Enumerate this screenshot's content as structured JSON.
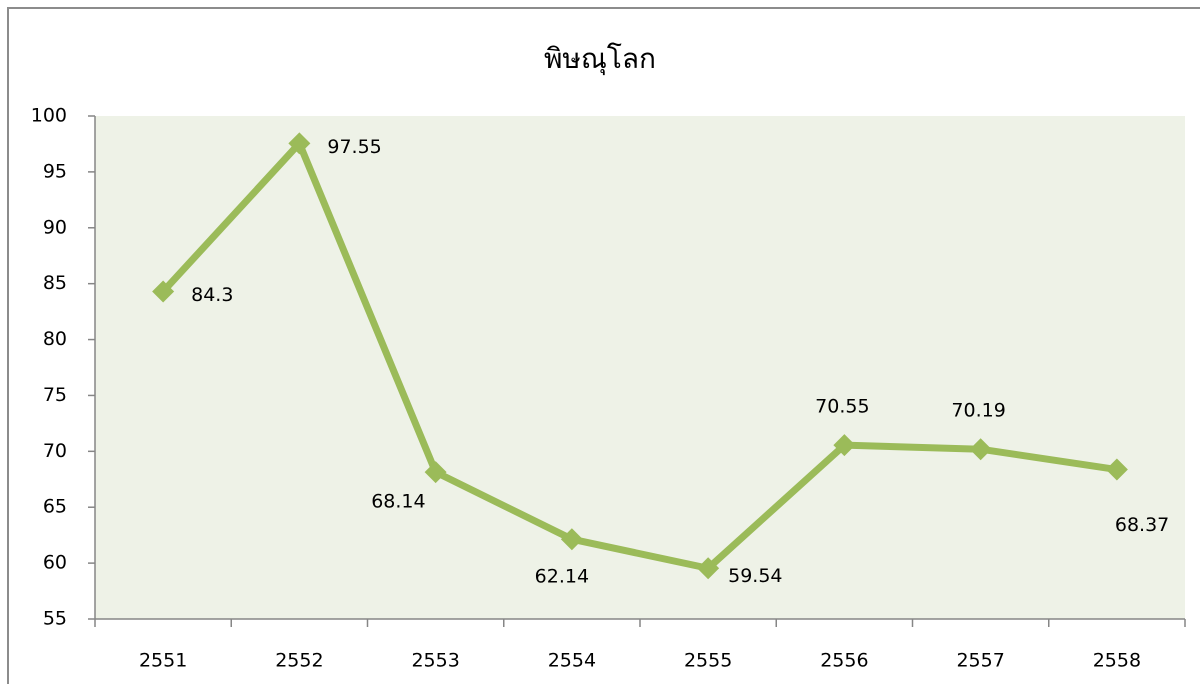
{
  "chart_data": {
    "type": "line",
    "title": "พิษณุโลก",
    "categories": [
      "2551",
      "2552",
      "2553",
      "2554",
      "2555",
      "2556",
      "2557",
      "2558"
    ],
    "values": [
      84.3,
      97.55,
      68.14,
      62.14,
      59.54,
      70.55,
      70.19,
      68.37
    ],
    "color": "#9bbb59",
    "ylim": [
      55,
      100
    ],
    "yticks": [
      55,
      60,
      65,
      70,
      75,
      80,
      85,
      90,
      95,
      100
    ],
    "grid": false,
    "marker": "diamond",
    "data_labels": true
  }
}
